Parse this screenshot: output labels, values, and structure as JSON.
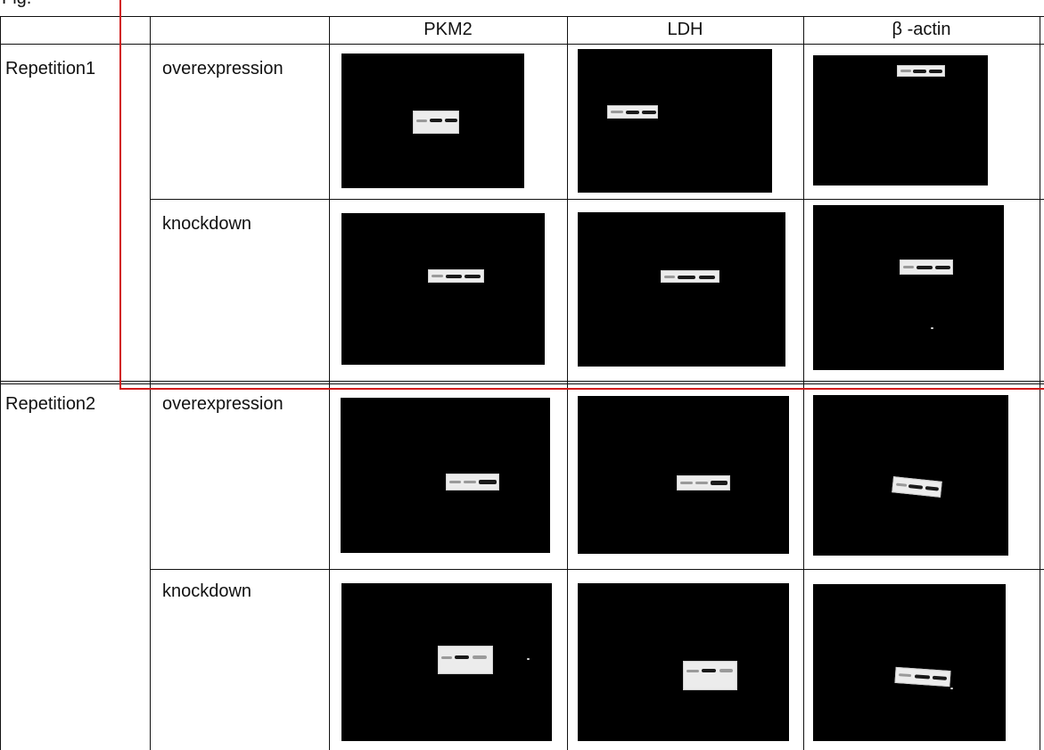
{
  "header_fragment": "Fig.",
  "table": {
    "columns": [
      "PKM2",
      "LDH",
      "β -actin"
    ],
    "rows": [
      {
        "repetition": "Repetition1",
        "condition": "overexpression"
      },
      {
        "repetition": "",
        "condition": "knockdown"
      },
      {
        "repetition": "Repetition2",
        "condition": "overexpression"
      },
      {
        "repetition": "",
        "condition": "knockdown"
      }
    ]
  },
  "colors": {
    "rule": "#111111",
    "annotation": "#d11a1a",
    "blot_background": "#000000",
    "membrane": "#ececec"
  }
}
